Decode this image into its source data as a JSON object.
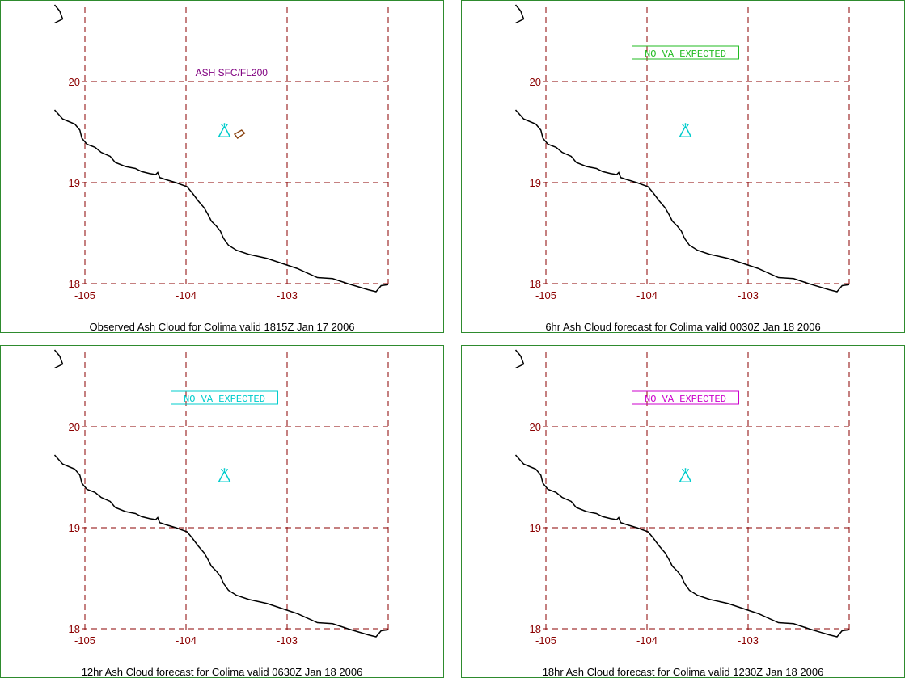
{
  "map": {
    "lat_labels": [
      "20",
      "19",
      "18"
    ],
    "lon_labels": [
      "-105",
      "-104",
      "-103"
    ],
    "coastline": [
      [
        -105.3,
        19.72
      ],
      [
        -105.22,
        19.63
      ],
      [
        -105.1,
        19.58
      ],
      [
        -105.05,
        19.52
      ],
      [
        -105.03,
        19.44
      ],
      [
        -104.98,
        19.38
      ],
      [
        -104.9,
        19.35
      ],
      [
        -104.84,
        19.3
      ],
      [
        -104.75,
        19.26
      ],
      [
        -104.7,
        19.2
      ],
      [
        -104.6,
        19.16
      ],
      [
        -104.5,
        19.14
      ],
      [
        -104.44,
        19.11
      ],
      [
        -104.36,
        19.09
      ],
      [
        -104.3,
        19.08
      ],
      [
        -104.28,
        19.1
      ],
      [
        -104.26,
        19.05
      ],
      [
        -104.2,
        19.03
      ],
      [
        -104.1,
        19.0
      ],
      [
        -103.99,
        18.96
      ],
      [
        -103.94,
        18.9
      ],
      [
        -103.88,
        18.82
      ],
      [
        -103.82,
        18.75
      ],
      [
        -103.78,
        18.68
      ],
      [
        -103.75,
        18.62
      ],
      [
        -103.7,
        18.57
      ],
      [
        -103.66,
        18.52
      ],
      [
        -103.63,
        18.45
      ],
      [
        -103.58,
        18.38
      ],
      [
        -103.5,
        18.33
      ],
      [
        -103.38,
        18.29
      ],
      [
        -103.2,
        18.25
      ],
      [
        -103.05,
        18.2
      ],
      [
        -102.9,
        18.15
      ],
      [
        -102.7,
        18.06
      ],
      [
        -102.55,
        18.05
      ],
      [
        -102.4,
        18.0
      ],
      [
        -102.2,
        17.94
      ],
      [
        -102.12,
        17.92
      ],
      [
        -102.07,
        17.98
      ],
      [
        -102.0,
        17.99
      ]
    ],
    "coast_fragment": [
      [
        -105.3,
        20.76
      ],
      [
        -105.25,
        20.7
      ],
      [
        -105.22,
        20.62
      ],
      [
        -105.3,
        20.58
      ]
    ],
    "volcano": {
      "lon": -103.62,
      "lat": 19.51
    },
    "volcano_icon": "volcano-triangle-icon",
    "colors": {
      "grid": "#8b0000",
      "coast": "#000000",
      "volcano": "#00cccc",
      "border": "#2e8b2e"
    }
  },
  "panels": [
    {
      "caption": "Observed Ash Cloud for Colima valid 1815Z Jan 17 2006",
      "annotation": {
        "text": "ASH SFC/FL200",
        "boxed": false,
        "color": "#800080"
      },
      "ash_polygon": [
        [
          -103.52,
          19.48
        ],
        [
          -103.45,
          19.52
        ],
        [
          -103.42,
          19.49
        ],
        [
          -103.49,
          19.44
        ]
      ]
    },
    {
      "caption": "6hr Ash Cloud forecast for Colima valid 0030Z Jan 18 2006",
      "annotation": {
        "text": "NO VA EXPECTED",
        "boxed": true,
        "color": "#22bb22"
      },
      "ash_polygon": []
    },
    {
      "caption": "12hr Ash Cloud forecast for Colima valid 0630Z Jan 18 2006",
      "annotation": {
        "text": "NO VA EXPECTED",
        "boxed": true,
        "color": "#00cccc"
      },
      "ash_polygon": []
    },
    {
      "caption": "18hr Ash Cloud forecast for Colima valid 1230Z Jan 18 2006",
      "annotation": {
        "text": "NO VA EXPECTED",
        "boxed": true,
        "color": "#cc00cc"
      },
      "ash_polygon": []
    }
  ]
}
